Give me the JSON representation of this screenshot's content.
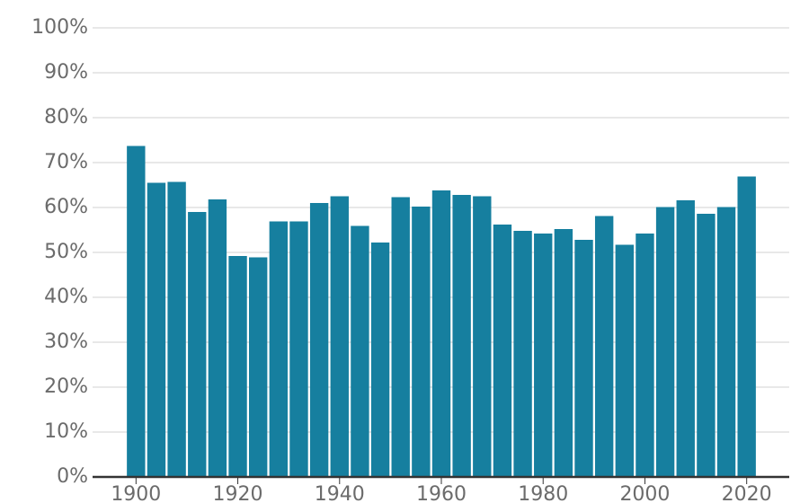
{
  "chart_data": {
    "type": "bar",
    "categories": [
      "1900",
      null,
      null,
      null,
      null,
      "1920",
      null,
      null,
      null,
      null,
      "1940",
      null,
      null,
      null,
      null,
      "1960",
      null,
      null,
      null,
      null,
      "1980",
      null,
      null,
      null,
      null,
      "2000",
      null,
      null,
      null,
      null,
      "2020"
    ],
    "values": [
      73.7,
      65.5,
      65.7,
      59.0,
      61.8,
      49.2,
      48.9,
      56.9,
      56.9,
      61.0,
      62.5,
      55.9,
      52.2,
      62.3,
      60.2,
      63.8,
      62.8,
      62.5,
      56.2,
      54.8,
      54.2,
      55.2,
      52.8,
      58.1,
      51.7,
      54.2,
      60.1,
      61.6,
      58.6,
      60.1,
      66.9
    ],
    "color": "#167f9f",
    "ylim": [
      0,
      100
    ],
    "yticks": [
      {
        "value": 0,
        "label": "0%"
      },
      {
        "value": 10,
        "label": "10%"
      },
      {
        "value": 20,
        "label": "20%"
      },
      {
        "value": 30,
        "label": "30%"
      },
      {
        "value": 40,
        "label": "40%"
      },
      {
        "value": 50,
        "label": "50%"
      },
      {
        "value": 60,
        "label": "60%"
      },
      {
        "value": 70,
        "label": "70%"
      },
      {
        "value": 80,
        "label": "80%"
      },
      {
        "value": 90,
        "label": "90%"
      },
      {
        "value": 100,
        "label": "100%"
      }
    ],
    "grid": true
  }
}
